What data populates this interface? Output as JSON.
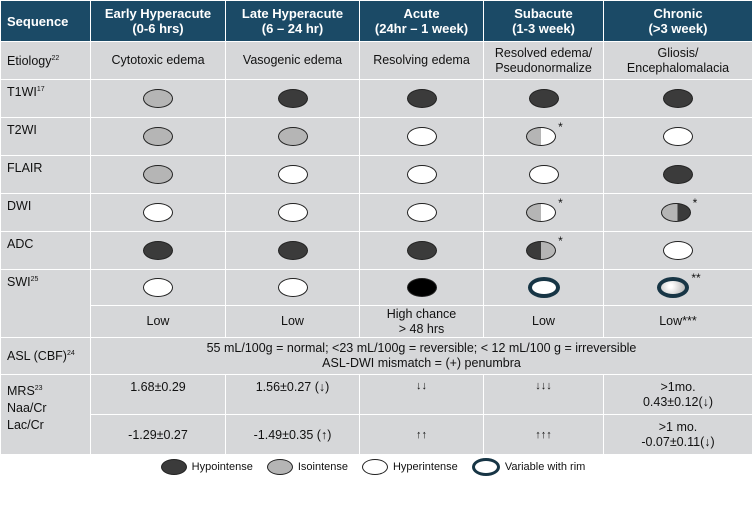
{
  "headers": [
    {
      "l1": "Sequence",
      "l2": ""
    },
    {
      "l1": "Early Hyperacute",
      "l2": "(0-6 hrs)"
    },
    {
      "l1": "Late Hyperacute",
      "l2": "(6 – 24 hr)"
    },
    {
      "l1": "Acute",
      "l2": "(24hr – 1 week)"
    },
    {
      "l1": "Subacute",
      "l2": "(1-3 week)"
    },
    {
      "l1": "Chronic",
      "l2": "(>3 week)"
    }
  ],
  "etiology": {
    "label": "Etiology",
    "sup": "22",
    "cells": [
      "Cytotoxic edema",
      "Vasogenic edema",
      "Resolving edema",
      "Resolved edema/",
      "Gliosis/"
    ],
    "cells2": [
      "",
      "",
      "",
      "Pseudonormalize",
      "Encephalomalacia"
    ]
  },
  "rows": [
    {
      "label": "T1WI",
      "sup": "17",
      "sig": [
        "iso",
        "hypo",
        "hypo",
        "hypo",
        "hypo"
      ],
      "stars": [
        "",
        "",
        "",
        "",
        ""
      ]
    },
    {
      "label": "T2WI",
      "sup": "",
      "sig": [
        "iso",
        "iso",
        "hyper",
        "iso-hyper",
        "hyper"
      ],
      "stars": [
        "",
        "",
        "",
        "*",
        ""
      ]
    },
    {
      "label": "FLAIR",
      "sup": "",
      "sig": [
        "iso",
        "hyper",
        "hyper",
        "hyper",
        "hypo"
      ],
      "stars": [
        "",
        "",
        "",
        "",
        ""
      ]
    },
    {
      "label": "DWI",
      "sup": "",
      "sig": [
        "hyper",
        "hyper",
        "hyper",
        "iso-hyper",
        "iso-hypo"
      ],
      "stars": [
        "",
        "",
        "",
        "*",
        "*"
      ]
    },
    {
      "label": "ADC",
      "sup": "",
      "sig": [
        "hypo",
        "hypo",
        "hypo",
        "hypo-iso",
        "hyper"
      ],
      "stars": [
        "",
        "",
        "",
        "*",
        ""
      ]
    },
    {
      "label": "SWI",
      "sup": "25",
      "sig": [
        "hyper",
        "hyper",
        "black",
        "rim",
        "rimgrad"
      ],
      "stars": [
        "",
        "",
        "",
        "",
        "**"
      ]
    }
  ],
  "swi_text": [
    "Low",
    "Low",
    "High chance",
    "Low",
    "Low***"
  ],
  "swi_text2": [
    "",
    "",
    "> 48 hrs",
    "",
    ""
  ],
  "asl": {
    "label": "ASL (CBF)",
    "sup": "24",
    "line1": "55 mL/100g = normal; <23 mL/100g = reversible; < 12 mL/100 g = irreversible",
    "line2": "ASL-DWI mismatch = (+) penumbra"
  },
  "mrs": {
    "label1": "MRS",
    "sup": "23",
    "label2": "Naa/Cr",
    "label3": "Lac/Cr",
    "naa": [
      "1.68±0.29",
      "1.56±0.27 (↓)",
      "↓↓",
      "↓↓↓",
      ">1mo."
    ],
    "naa2": [
      "",
      "",
      "",
      "",
      "0.43±0.12(↓)"
    ],
    "lac": [
      "-1.29±0.27",
      "-1.49±0.35 (↑)",
      "↑↑",
      "↑↑↑",
      ">1 mo."
    ],
    "lac2": [
      "",
      "",
      "",
      "",
      "-0.07±0.11(↓)"
    ]
  },
  "legend": [
    {
      "sig": "hypo",
      "label": "Hypointense"
    },
    {
      "sig": "iso",
      "label": "Isointense"
    },
    {
      "sig": "hyper",
      "label": "Hyperintense"
    },
    {
      "sig": "rim",
      "label": "Variable with rim"
    }
  ]
}
